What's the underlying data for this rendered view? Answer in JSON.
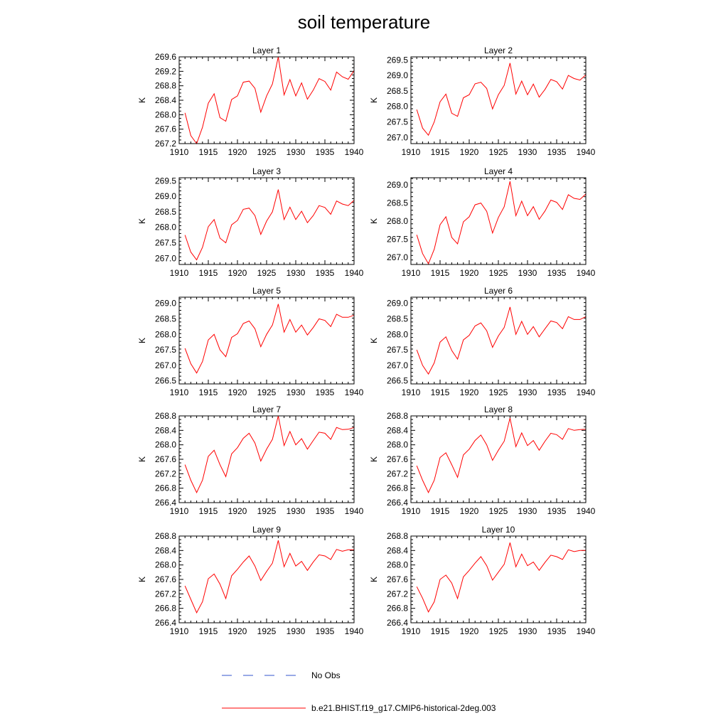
{
  "figure": {
    "title": "soil temperature",
    "series_color": "#ff0000",
    "obs_color": "#3355cc"
  },
  "legend": {
    "position": "bottom-center",
    "items": [
      {
        "label": "No Obs",
        "style": "dashed",
        "color": "#3355cc"
      },
      {
        "label": "b.e21.BHIST.f19_g17.CMIP6-historical-2deg.003",
        "style": "solid",
        "color": "#ff0000"
      }
    ]
  },
  "chart_data": [
    {
      "type": "line",
      "title": "Layer 1",
      "ylabel": "K",
      "xlim": [
        1910,
        1940
      ],
      "xticks": [
        "1910",
        "1915",
        "1920",
        "1925",
        "1930",
        "1935",
        "1940"
      ],
      "ylim": [
        267.2,
        269.6
      ],
      "yticks": [
        "267.2",
        "267.6",
        "268.0",
        "268.4",
        "268.8",
        "269.2",
        "269.6"
      ],
      "x": [
        1911,
        1912,
        1913,
        1914,
        1915,
        1916,
        1917,
        1918,
        1919,
        1920,
        1921,
        1922,
        1923,
        1924,
        1925,
        1926,
        1927,
        1928,
        1929,
        1930,
        1931,
        1932,
        1933,
        1934,
        1935,
        1936,
        1937,
        1938,
        1939,
        1940
      ],
      "series": [
        {
          "name": "b.e21.BHIST.f19_g17.CMIP6-historical-2deg.003",
          "values": [
            268.05,
            267.42,
            267.2,
            267.65,
            268.32,
            268.58,
            267.92,
            267.82,
            268.42,
            268.52,
            268.9,
            268.93,
            268.73,
            268.07,
            268.52,
            268.85,
            269.6,
            268.55,
            268.97,
            268.52,
            268.88,
            268.43,
            268.68,
            269.0,
            268.92,
            268.68,
            269.18,
            269.05,
            268.98,
            269.22
          ]
        }
      ]
    },
    {
      "type": "line",
      "title": "Layer 2",
      "ylabel": "K",
      "xlim": [
        1910,
        1940
      ],
      "xticks": [
        "1910",
        "1915",
        "1920",
        "1925",
        "1930",
        "1935",
        "1940"
      ],
      "ylim": [
        266.8,
        269.6
      ],
      "yticks": [
        "267.0",
        "267.5",
        "268.0",
        "268.5",
        "269.0",
        "269.5"
      ],
      "x": [
        1911,
        1912,
        1913,
        1914,
        1915,
        1916,
        1917,
        1918,
        1919,
        1920,
        1921,
        1922,
        1923,
        1924,
        1925,
        1926,
        1927,
        1928,
        1929,
        1930,
        1931,
        1932,
        1933,
        1934,
        1935,
        1936,
        1937,
        1938,
        1939,
        1940
      ],
      "series": [
        {
          "name": "b.e21.BHIST.f19_g17.CMIP6-historical-2deg.003",
          "values": [
            267.9,
            267.3,
            267.07,
            267.5,
            268.15,
            268.4,
            267.78,
            267.68,
            268.28,
            268.38,
            268.73,
            268.78,
            268.58,
            267.92,
            268.38,
            268.68,
            269.4,
            268.4,
            268.82,
            268.38,
            268.72,
            268.3,
            268.55,
            268.87,
            268.8,
            268.56,
            269.0,
            268.9,
            268.85,
            269.02
          ]
        }
      ]
    },
    {
      "type": "line",
      "title": "Layer 3",
      "ylabel": "K",
      "xlim": [
        1910,
        1940
      ],
      "xticks": [
        "1910",
        "1915",
        "1920",
        "1925",
        "1930",
        "1935",
        "1940"
      ],
      "ylim": [
        266.8,
        269.6
      ],
      "yticks": [
        "267.0",
        "267.5",
        "268.0",
        "268.5",
        "269.0",
        "269.5"
      ],
      "x": [
        1911,
        1912,
        1913,
        1914,
        1915,
        1916,
        1917,
        1918,
        1919,
        1920,
        1921,
        1922,
        1923,
        1924,
        1925,
        1926,
        1927,
        1928,
        1929,
        1930,
        1931,
        1932,
        1933,
        1934,
        1935,
        1936,
        1937,
        1938,
        1939,
        1940
      ],
      "series": [
        {
          "name": "b.e21.BHIST.f19_g17.CMIP6-historical-2deg.003",
          "values": [
            267.75,
            267.2,
            266.95,
            267.35,
            268.02,
            268.25,
            267.65,
            267.5,
            268.08,
            268.22,
            268.58,
            268.62,
            268.38,
            267.77,
            268.2,
            268.5,
            269.22,
            268.25,
            268.65,
            268.25,
            268.52,
            268.15,
            268.38,
            268.7,
            268.64,
            268.42,
            268.85,
            268.75,
            268.7,
            268.87
          ]
        }
      ]
    },
    {
      "type": "line",
      "title": "Layer 4",
      "ylabel": "K",
      "xlim": [
        1910,
        1940
      ],
      "xticks": [
        "1910",
        "1915",
        "1920",
        "1925",
        "1930",
        "1935",
        "1940"
      ],
      "ylim": [
        266.8,
        269.2
      ],
      "yticks": [
        "267.0",
        "267.5",
        "268.0",
        "268.5",
        "269.0"
      ],
      "x": [
        1911,
        1912,
        1913,
        1914,
        1915,
        1916,
        1917,
        1918,
        1919,
        1920,
        1921,
        1922,
        1923,
        1924,
        1925,
        1926,
        1927,
        1928,
        1929,
        1930,
        1931,
        1932,
        1933,
        1934,
        1935,
        1936,
        1937,
        1938,
        1939,
        1940
      ],
      "series": [
        {
          "name": "b.e21.BHIST.f19_g17.CMIP6-historical-2deg.003",
          "values": [
            267.62,
            267.1,
            266.82,
            267.22,
            267.9,
            268.12,
            267.55,
            267.37,
            267.98,
            268.12,
            268.45,
            268.5,
            268.27,
            267.67,
            268.1,
            268.4,
            269.1,
            268.15,
            268.55,
            268.15,
            268.4,
            268.05,
            268.28,
            268.58,
            268.52,
            268.32,
            268.73,
            268.63,
            268.6,
            268.75
          ]
        }
      ]
    },
    {
      "type": "line",
      "title": "Layer 5",
      "ylabel": "K",
      "xlim": [
        1910,
        1940
      ],
      "xticks": [
        "1910",
        "1915",
        "1920",
        "1925",
        "1930",
        "1935",
        "1940"
      ],
      "ylim": [
        266.4,
        269.2
      ],
      "yticks": [
        "266.5",
        "267.0",
        "267.5",
        "268.0",
        "268.5",
        "269.0"
      ],
      "x": [
        1911,
        1912,
        1913,
        1914,
        1915,
        1916,
        1917,
        1918,
        1919,
        1920,
        1921,
        1922,
        1923,
        1924,
        1925,
        1926,
        1927,
        1928,
        1929,
        1930,
        1931,
        1932,
        1933,
        1934,
        1935,
        1936,
        1937,
        1938,
        1939,
        1940
      ],
      "series": [
        {
          "name": "b.e21.BHIST.f19_g17.CMIP6-historical-2deg.003",
          "values": [
            267.55,
            267.05,
            266.75,
            267.12,
            267.82,
            268.0,
            267.5,
            267.28,
            267.9,
            268.02,
            268.35,
            268.43,
            268.18,
            267.6,
            268.0,
            268.3,
            268.98,
            268.07,
            268.48,
            268.07,
            268.3,
            267.98,
            268.22,
            268.5,
            268.45,
            268.25,
            268.65,
            268.55,
            268.55,
            268.62
          ]
        }
      ]
    },
    {
      "type": "line",
      "title": "Layer 6",
      "ylabel": "K",
      "xlim": [
        1910,
        1940
      ],
      "xticks": [
        "1910",
        "1915",
        "1920",
        "1925",
        "1930",
        "1935",
        "1940"
      ],
      "ylim": [
        266.4,
        269.2
      ],
      "yticks": [
        "266.5",
        "267.0",
        "267.5",
        "268.0",
        "268.5",
        "269.0"
      ],
      "x": [
        1911,
        1912,
        1913,
        1914,
        1915,
        1916,
        1917,
        1918,
        1919,
        1920,
        1921,
        1922,
        1923,
        1924,
        1925,
        1926,
        1927,
        1928,
        1929,
        1930,
        1931,
        1932,
        1933,
        1934,
        1935,
        1936,
        1937,
        1938,
        1939,
        1940
      ],
      "series": [
        {
          "name": "b.e21.BHIST.f19_g17.CMIP6-historical-2deg.003",
          "values": [
            267.5,
            267.0,
            266.72,
            267.08,
            267.75,
            267.92,
            267.48,
            267.2,
            267.82,
            267.97,
            268.27,
            268.37,
            268.12,
            267.58,
            267.95,
            268.22,
            268.88,
            268.0,
            268.42,
            268.0,
            268.25,
            267.92,
            268.18,
            268.43,
            268.38,
            268.18,
            268.57,
            268.48,
            268.48,
            268.57
          ]
        }
      ]
    },
    {
      "type": "line",
      "title": "Layer 7",
      "ylabel": "K",
      "xlim": [
        1910,
        1940
      ],
      "xticks": [
        "1910",
        "1915",
        "1920",
        "1925",
        "1930",
        "1935",
        "1940"
      ],
      "ylim": [
        266.4,
        268.8
      ],
      "yticks": [
        "266.4",
        "266.8",
        "267.2",
        "267.6",
        "268.0",
        "268.4",
        "268.8"
      ],
      "x": [
        1911,
        1912,
        1913,
        1914,
        1915,
        1916,
        1917,
        1918,
        1919,
        1920,
        1921,
        1922,
        1923,
        1924,
        1925,
        1926,
        1927,
        1928,
        1929,
        1930,
        1931,
        1932,
        1933,
        1934,
        1935,
        1936,
        1937,
        1938,
        1939,
        1940
      ],
      "series": [
        {
          "name": "b.e21.BHIST.f19_g17.CMIP6-historical-2deg.003",
          "values": [
            267.45,
            267.02,
            266.68,
            267.02,
            267.68,
            267.85,
            267.45,
            267.12,
            267.75,
            267.92,
            268.18,
            268.32,
            268.05,
            267.55,
            267.88,
            268.15,
            268.8,
            267.98,
            268.37,
            268.0,
            268.17,
            267.88,
            268.12,
            268.35,
            268.32,
            268.15,
            268.48,
            268.42,
            268.43,
            268.48
          ]
        }
      ]
    },
    {
      "type": "line",
      "title": "Layer 8",
      "ylabel": "K",
      "xlim": [
        1910,
        1940
      ],
      "xticks": [
        "1910",
        "1915",
        "1920",
        "1925",
        "1930",
        "1935",
        "1940"
      ],
      "ylim": [
        266.4,
        268.8
      ],
      "yticks": [
        "266.4",
        "266.8",
        "267.2",
        "267.6",
        "268.0",
        "268.4",
        "268.8"
      ],
      "x": [
        1911,
        1912,
        1913,
        1914,
        1915,
        1916,
        1917,
        1918,
        1919,
        1920,
        1921,
        1922,
        1923,
        1924,
        1925,
        1926,
        1927,
        1928,
        1929,
        1930,
        1931,
        1932,
        1933,
        1934,
        1935,
        1936,
        1937,
        1938,
        1939,
        1940
      ],
      "series": [
        {
          "name": "b.e21.BHIST.f19_g17.CMIP6-historical-2deg.003",
          "values": [
            267.42,
            267.02,
            266.68,
            267.02,
            267.65,
            267.78,
            267.45,
            267.1,
            267.72,
            267.88,
            268.12,
            268.27,
            268.0,
            267.57,
            267.85,
            268.1,
            268.74,
            267.95,
            268.33,
            267.98,
            268.12,
            267.85,
            268.1,
            268.32,
            268.28,
            268.15,
            268.45,
            268.4,
            268.42,
            268.43
          ]
        }
      ]
    },
    {
      "type": "line",
      "title": "Layer 9",
      "ylabel": "K",
      "xlim": [
        1910,
        1940
      ],
      "xticks": [
        "1910",
        "1915",
        "1920",
        "1925",
        "1930",
        "1935",
        "1940"
      ],
      "ylim": [
        266.4,
        268.8
      ],
      "yticks": [
        "266.4",
        "266.8",
        "267.2",
        "267.6",
        "268.0",
        "268.4",
        "268.8"
      ],
      "x": [
        1911,
        1912,
        1913,
        1914,
        1915,
        1916,
        1917,
        1918,
        1919,
        1920,
        1921,
        1922,
        1923,
        1924,
        1925,
        1926,
        1927,
        1928,
        1929,
        1930,
        1931,
        1932,
        1933,
        1934,
        1935,
        1936,
        1937,
        1938,
        1939,
        1940
      ],
      "series": [
        {
          "name": "b.e21.BHIST.f19_g17.CMIP6-historical-2deg.003",
          "values": [
            267.42,
            267.05,
            266.68,
            266.98,
            267.62,
            267.75,
            267.47,
            267.07,
            267.7,
            267.88,
            268.08,
            268.25,
            267.97,
            267.57,
            267.82,
            268.05,
            268.68,
            267.95,
            268.32,
            267.97,
            268.1,
            267.85,
            268.08,
            268.28,
            268.25,
            268.15,
            268.43,
            268.38,
            268.42,
            268.42
          ]
        }
      ]
    },
    {
      "type": "line",
      "title": "Layer 10",
      "ylabel": "K",
      "xlim": [
        1910,
        1940
      ],
      "xticks": [
        "1910",
        "1915",
        "1920",
        "1925",
        "1930",
        "1935",
        "1940"
      ],
      "ylim": [
        266.4,
        268.8
      ],
      "yticks": [
        "266.4",
        "266.8",
        "267.2",
        "267.6",
        "268.0",
        "268.4",
        "268.8"
      ],
      "x": [
        1911,
        1912,
        1913,
        1914,
        1915,
        1916,
        1917,
        1918,
        1919,
        1920,
        1921,
        1922,
        1923,
        1924,
        1925,
        1926,
        1927,
        1928,
        1929,
        1930,
        1931,
        1932,
        1933,
        1934,
        1935,
        1936,
        1937,
        1938,
        1939,
        1940
      ],
      "series": [
        {
          "name": "b.e21.BHIST.f19_g17.CMIP6-historical-2deg.003",
          "values": [
            267.4,
            267.08,
            266.7,
            266.98,
            267.6,
            267.72,
            267.5,
            267.07,
            267.67,
            267.85,
            268.05,
            268.23,
            267.98,
            267.58,
            267.8,
            268.02,
            268.62,
            267.95,
            268.3,
            267.98,
            268.08,
            267.85,
            268.07,
            268.27,
            268.23,
            268.15,
            268.42,
            268.37,
            268.4,
            268.4
          ]
        }
      ]
    }
  ]
}
